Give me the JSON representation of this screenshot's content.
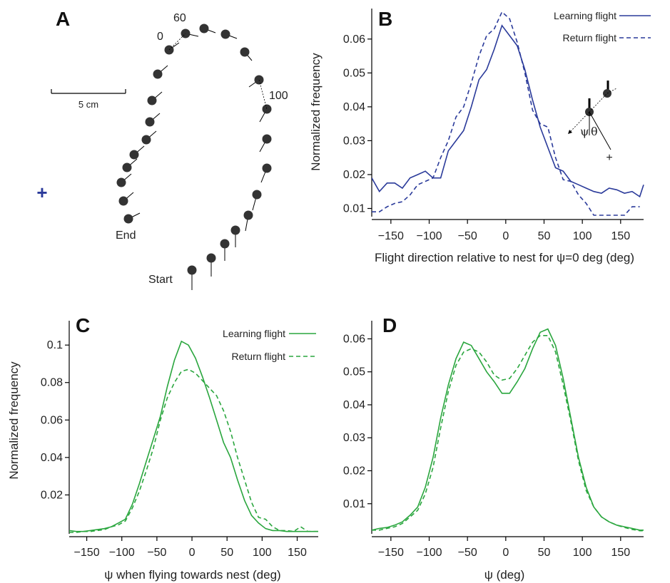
{
  "colors": {
    "blue": "#2a3a9a",
    "green": "#2aa63e",
    "marker": "#333333"
  },
  "panels": {
    "a": {
      "letter": "A",
      "scale_label": "5 cm",
      "label_0": "0",
      "label_60": "60",
      "label_100": "100",
      "end_label": "End",
      "start_label": "Start",
      "nest_marker": "+"
    },
    "b": {
      "letter": "B",
      "inset_psi": "ψ",
      "inset_theta": "θ",
      "inset_plus": "+"
    },
    "c": {
      "letter": "C"
    },
    "d": {
      "letter": "D"
    }
  },
  "chart_data": [
    {
      "id": "B",
      "type": "line",
      "xlabel": "Flight direction relative to nest for ψ=0 deg (deg)",
      "ylabel": "Normalized frequency",
      "xlim": [
        -175,
        180
      ],
      "ylim": [
        0.008,
        0.069
      ],
      "xticks": [
        -150,
        -100,
        -50,
        0,
        50,
        100,
        150
      ],
      "xtick_labels": [
        "−150",
        "−100",
        "−50",
        "0",
        "50",
        "100",
        "150"
      ],
      "yticks": [
        0.01,
        0.02,
        0.03,
        0.04,
        0.05,
        0.06
      ],
      "ytick_labels": [
        "0.01",
        "0.02",
        "0.03",
        "0.04",
        "0.05",
        "0.06"
      ],
      "legend_position": "top-right",
      "series": [
        {
          "name": "Learning flight",
          "style": "solid",
          "color": "#2a3a9a",
          "x": [
            -175,
            -165,
            -155,
            -145,
            -135,
            -125,
            -115,
            -105,
            -95,
            -85,
            -75,
            -65,
            -55,
            -45,
            -35,
            -25,
            -15,
            -5,
            5,
            15,
            25,
            35,
            45,
            55,
            65,
            75,
            85,
            95,
            105,
            115,
            125,
            135,
            145,
            155,
            165,
            175,
            180
          ],
          "y": [
            0.019,
            0.015,
            0.0175,
            0.0175,
            0.016,
            0.019,
            0.02,
            0.021,
            0.019,
            0.019,
            0.027,
            0.03,
            0.033,
            0.04,
            0.048,
            0.051,
            0.057,
            0.064,
            0.061,
            0.058,
            0.051,
            0.042,
            0.034,
            0.028,
            0.022,
            0.021,
            0.018,
            0.017,
            0.016,
            0.015,
            0.0145,
            0.016,
            0.0155,
            0.0145,
            0.015,
            0.0135,
            0.017
          ]
        },
        {
          "name": "Return flight",
          "style": "dashed",
          "color": "#2a3a9a",
          "x": [
            -175,
            -165,
            -155,
            -145,
            -135,
            -125,
            -115,
            -105,
            -95,
            -85,
            -75,
            -65,
            -55,
            -45,
            -35,
            -25,
            -15,
            -5,
            5,
            15,
            25,
            35,
            45,
            55,
            65,
            75,
            85,
            95,
            105,
            115,
            125,
            135,
            145,
            155,
            165,
            175
          ],
          "y": [
            0.009,
            0.009,
            0.0105,
            0.0115,
            0.012,
            0.014,
            0.017,
            0.018,
            0.019,
            0.025,
            0.03,
            0.037,
            0.04,
            0.047,
            0.055,
            0.061,
            0.063,
            0.068,
            0.066,
            0.059,
            0.05,
            0.039,
            0.035,
            0.034,
            0.025,
            0.0185,
            0.018,
            0.014,
            0.0115,
            0.008,
            0.008,
            0.008,
            0.008,
            0.008,
            0.0105,
            0.0105
          ]
        }
      ]
    },
    {
      "id": "C",
      "type": "line",
      "xlabel": "ψ when flying towards nest (deg)",
      "ylabel": "Normalized frequency",
      "xlim": [
        -175,
        180
      ],
      "ylim": [
        0,
        0.113
      ],
      "xticks": [
        -150,
        -100,
        -50,
        0,
        50,
        100,
        150
      ],
      "xtick_labels": [
        "−150",
        "−100",
        "−50",
        "0",
        "50",
        "100",
        "150"
      ],
      "yticks": [
        0.02,
        0.04,
        0.06,
        0.08,
        0.1
      ],
      "ytick_labels": [
        "0.02",
        "0.04",
        "0.06",
        "0.08",
        "0.1"
      ],
      "legend_position": "top-right",
      "series": [
        {
          "name": "Learning flight",
          "style": "solid",
          "color": "#2aa63e",
          "x": [
            -175,
            -165,
            -155,
            -145,
            -135,
            -125,
            -115,
            -105,
            -95,
            -85,
            -75,
            -65,
            -55,
            -45,
            -35,
            -25,
            -15,
            -5,
            5,
            15,
            25,
            35,
            45,
            55,
            65,
            75,
            85,
            95,
            105,
            115,
            125,
            135,
            145,
            155,
            165,
            175,
            180
          ],
          "y": [
            0.001,
            0.0005,
            0.0005,
            0.001,
            0.0015,
            0.002,
            0.003,
            0.005,
            0.007,
            0.015,
            0.026,
            0.038,
            0.05,
            0.062,
            0.078,
            0.092,
            0.102,
            0.1,
            0.093,
            0.083,
            0.072,
            0.06,
            0.048,
            0.04,
            0.028,
            0.017,
            0.009,
            0.005,
            0.002,
            0.001,
            0.001,
            0.0005,
            0.0005,
            0.0005,
            0.0005,
            0.0005,
            0.0005
          ]
        },
        {
          "name": "Return flight",
          "style": "dashed",
          "color": "#2aa63e",
          "x": [
            -175,
            -165,
            -155,
            -145,
            -135,
            -125,
            -115,
            -105,
            -95,
            -85,
            -75,
            -65,
            -55,
            -45,
            -35,
            -25,
            -15,
            -5,
            5,
            15,
            25,
            35,
            45,
            55,
            65,
            75,
            85,
            95,
            105,
            115,
            125,
            135,
            145,
            155,
            165,
            175,
            180
          ],
          "y": [
            0.0,
            0.0,
            0.0005,
            0.0005,
            0.001,
            0.0015,
            0.003,
            0.004,
            0.006,
            0.013,
            0.022,
            0.033,
            0.045,
            0.06,
            0.072,
            0.08,
            0.086,
            0.087,
            0.085,
            0.081,
            0.077,
            0.073,
            0.065,
            0.054,
            0.04,
            0.028,
            0.016,
            0.008,
            0.007,
            0.003,
            0.001,
            0.001,
            0.0005,
            0.003,
            0.0005,
            0.0005,
            0.0005
          ]
        }
      ]
    },
    {
      "id": "D",
      "type": "line",
      "xlabel": "ψ (deg)",
      "ylabel": "",
      "xlim": [
        -175,
        180
      ],
      "ylim": [
        0.0013,
        0.0655
      ],
      "xticks": [
        -150,
        -100,
        -50,
        0,
        50,
        100,
        150
      ],
      "xtick_labels": [
        "−150",
        "−100",
        "−50",
        "0",
        "50",
        "100",
        "150"
      ],
      "yticks": [
        0.01,
        0.02,
        0.03,
        0.04,
        0.05,
        0.06
      ],
      "ytick_labels": [
        "0.01",
        "0.02",
        "0.03",
        "0.04",
        "0.05",
        "0.06"
      ],
      "series": [
        {
          "name": "Learning flight",
          "style": "solid",
          "color": "#2aa63e",
          "x": [
            -175,
            -165,
            -155,
            -145,
            -135,
            -125,
            -115,
            -105,
            -95,
            -85,
            -75,
            -65,
            -55,
            -45,
            -35,
            -25,
            -15,
            -5,
            5,
            15,
            25,
            35,
            45,
            55,
            65,
            75,
            85,
            95,
            105,
            115,
            125,
            135,
            145,
            155,
            165,
            175,
            180
          ],
          "y": [
            0.002,
            0.0025,
            0.0028,
            0.0035,
            0.0045,
            0.0065,
            0.009,
            0.015,
            0.024,
            0.036,
            0.046,
            0.054,
            0.059,
            0.058,
            0.054,
            0.05,
            0.047,
            0.0435,
            0.0435,
            0.047,
            0.051,
            0.057,
            0.062,
            0.063,
            0.058,
            0.048,
            0.036,
            0.024,
            0.015,
            0.009,
            0.006,
            0.0045,
            0.0035,
            0.003,
            0.0025,
            0.002,
            0.002
          ]
        },
        {
          "name": "Return flight",
          "style": "dashed",
          "color": "#2aa63e",
          "x": [
            -175,
            -165,
            -155,
            -145,
            -135,
            -125,
            -115,
            -105,
            -95,
            -85,
            -75,
            -65,
            -55,
            -45,
            -35,
            -25,
            -15,
            -5,
            5,
            15,
            25,
            35,
            45,
            55,
            65,
            75,
            85,
            95,
            105,
            115,
            125,
            135,
            145,
            155,
            165,
            175,
            180
          ],
          "y": [
            0.002,
            0.002,
            0.0025,
            0.003,
            0.004,
            0.006,
            0.008,
            0.013,
            0.021,
            0.033,
            0.044,
            0.052,
            0.056,
            0.057,
            0.056,
            0.053,
            0.049,
            0.0475,
            0.048,
            0.051,
            0.055,
            0.059,
            0.061,
            0.061,
            0.056,
            0.046,
            0.035,
            0.023,
            0.014,
            0.009,
            0.006,
            0.0045,
            0.0035,
            0.0028,
            0.0022,
            0.0018,
            0.0018
          ]
        }
      ]
    }
  ]
}
